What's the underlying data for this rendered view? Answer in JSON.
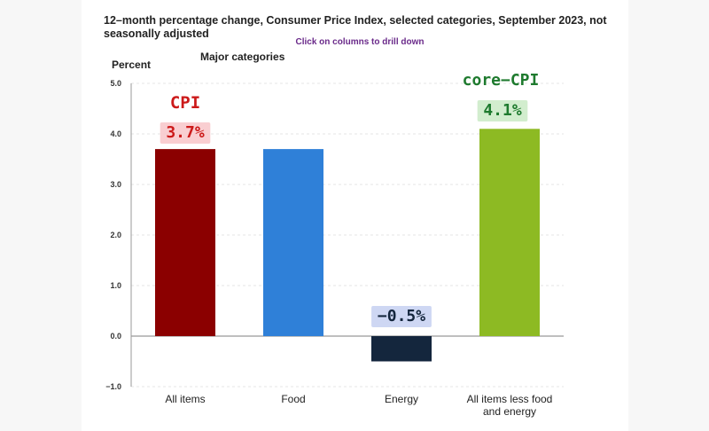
{
  "chart_data": {
    "type": "bar",
    "title": "12–month percentage change, Consumer Price Index, selected categories, September 2023, not seasonally adjusted",
    "subtitle": "Click on columns to drill down",
    "ylabel": "Percent",
    "legend_label": "Major categories",
    "categories": [
      "All items",
      "Food",
      "Energy",
      "All items less food and energy"
    ],
    "category_lines": [
      [
        "All items"
      ],
      [
        "Food"
      ],
      [
        "Energy"
      ],
      [
        "All items less food",
        "and energy"
      ]
    ],
    "values": [
      3.7,
      3.7,
      -0.5,
      4.1
    ],
    "colors": [
      "#8b0000",
      "#2f80d8",
      "#14263d",
      "#8dba23"
    ],
    "ylim": [
      -1.0,
      5.0
    ],
    "yticks": [
      "5.0",
      "4.0",
      "3.0",
      "2.0",
      "1.0",
      "0.0",
      "−1.0"
    ],
    "grid": true,
    "annotations": [
      {
        "text": "CPI",
        "color": "#cc1a1a"
      },
      {
        "text": "3.7%",
        "color": "#cc1a1a",
        "highlight": "#f8c9cc"
      },
      {
        "text": "−0.5%",
        "color": "#14263d",
        "highlight": "#c9d3f2"
      },
      {
        "text": "core−CPI",
        "color": "#1e7a2e"
      },
      {
        "text": "4.1%",
        "color": "#1e7a2e",
        "highlight": "#cdebc9"
      }
    ]
  }
}
